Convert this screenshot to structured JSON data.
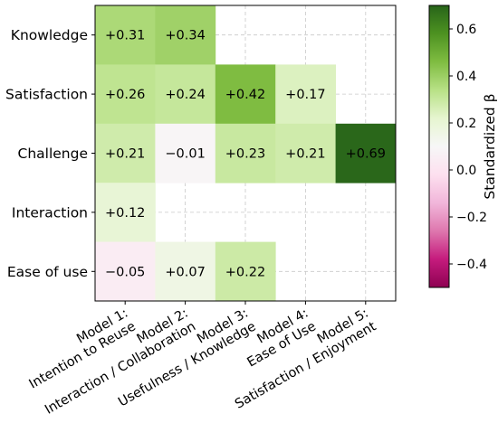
{
  "chart_data": {
    "type": "heatmap",
    "title": "",
    "xlabel": "",
    "ylabel": "",
    "x_categories": [
      [
        "Model 1:",
        "Intention to Reuse"
      ],
      [
        "Model 2:",
        "Interaction / Collaboration"
      ],
      [
        "Model 3:",
        "Usefulness / Knowledge"
      ],
      [
        "Model 4:",
        "Ease of Use"
      ],
      [
        "Model 5:",
        "Satisfaction / Enjoyment"
      ]
    ],
    "y_categories": [
      "Knowledge",
      "Satisfaction",
      "Challenge",
      "Interaction",
      "Ease of use"
    ],
    "values": [
      [
        0.31,
        0.34,
        null,
        null,
        null
      ],
      [
        0.26,
        0.24,
        0.42,
        0.17,
        null
      ],
      [
        0.21,
        -0.01,
        0.23,
        0.21,
        0.69
      ],
      [
        0.12,
        null,
        null,
        null,
        null
      ],
      [
        -0.05,
        0.07,
        0.22,
        null,
        null
      ]
    ],
    "labels": [
      [
        "+0.31",
        "+0.34",
        "",
        "",
        ""
      ],
      [
        "+0.26",
        "+0.24",
        "+0.42",
        "+0.17",
        ""
      ],
      [
        "+0.21",
        "−0.01",
        "+0.23",
        "+0.21",
        "+0.69"
      ],
      [
        "+0.12",
        "",
        "",
        "",
        ""
      ],
      [
        "−0.05",
        "+0.07",
        "+0.22",
        "",
        ""
      ]
    ],
    "colorbar": {
      "label": "Standardized β",
      "range": [
        -0.5,
        0.7
      ],
      "ticks": [
        0.6,
        0.4,
        0.2,
        0.0,
        -0.2,
        -0.4
      ],
      "tick_labels": [
        "0.6",
        "0.4",
        "0.2",
        "0.0",
        "−0.2",
        "−0.4"
      ],
      "colormap": "PiYG",
      "colors": [
        "#8e0152",
        "#c51b7d",
        "#de77ae",
        "#f1b6da",
        "#fde0ef",
        "#f7f7f7",
        "#e6f5d0",
        "#b8e186",
        "#7fbc41",
        "#4d9221",
        "#276419"
      ]
    },
    "grid": true
  }
}
